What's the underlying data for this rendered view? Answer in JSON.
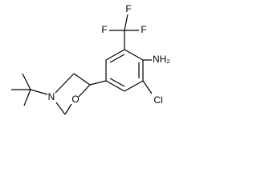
{
  "atoms": [
    "F",
    "F",
    "F",
    "NH₂",
    "Cl",
    "N",
    "O"
  ]
}
